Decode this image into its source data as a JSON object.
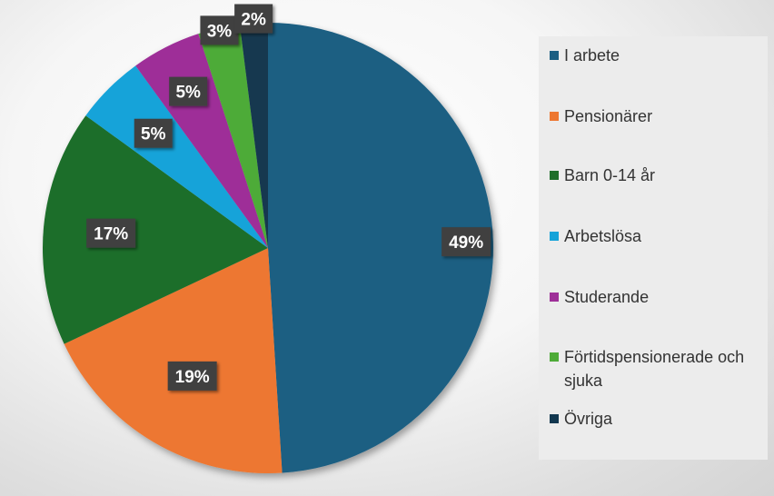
{
  "chart_data": {
    "type": "pie",
    "categories": [
      "I arbete",
      "Pensionärer",
      "Barn 0-14 år",
      "Arbetslösa",
      "Studerande",
      "Förtidspensionerade och sjuka",
      "Övriga"
    ],
    "values": [
      49,
      19,
      17,
      5,
      5,
      3,
      2
    ],
    "labels": [
      "49%",
      "19%",
      "17%",
      "5%",
      "5%",
      "3%",
      "2%"
    ],
    "colors": [
      "#1b5e82",
      "#ed7730",
      "#1f6e2a",
      "#16a3d9",
      "#9e2f98",
      "#4eab38",
      "#12374f"
    ],
    "legend_position": "right",
    "title": ""
  }
}
